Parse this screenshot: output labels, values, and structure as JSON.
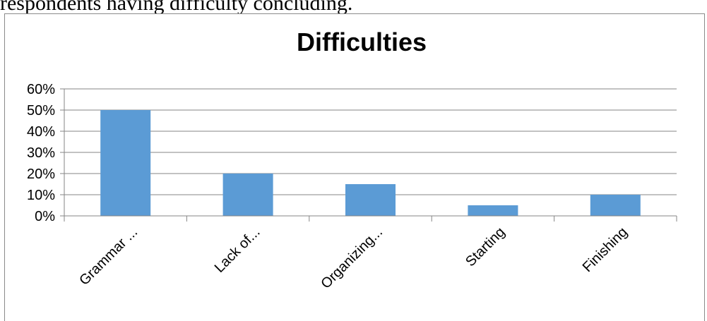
{
  "caption": "respondents having difficulty concluding.",
  "chart_data": {
    "type": "bar",
    "title": "Difficulties",
    "categories": [
      "Grammar ...",
      "Lack of...",
      "Organizing...",
      "Starting",
      "Finishing"
    ],
    "values": [
      0.5,
      0.2,
      0.15,
      0.05,
      0.1
    ],
    "ylim": [
      0,
      0.6
    ],
    "yticks": [
      "0%",
      "10%",
      "20%",
      "30%",
      "40%",
      "50%",
      "60%"
    ],
    "xlabel": "",
    "ylabel": "",
    "grid": true,
    "legend": "none",
    "bar_color": "#5b9bd5",
    "grid_color": "#868686",
    "axis_color": "#868686"
  }
}
